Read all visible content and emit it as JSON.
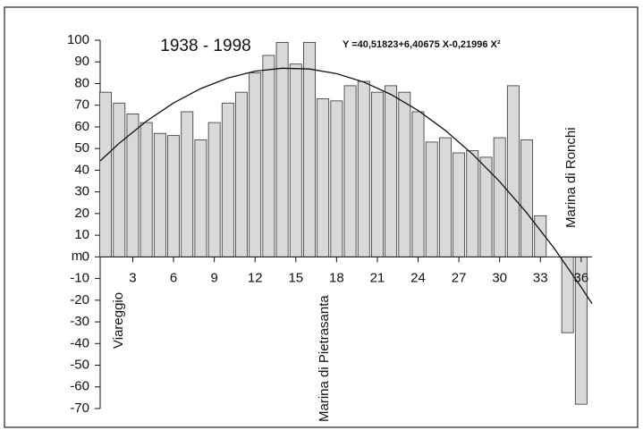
{
  "chart_data": {
    "type": "bar",
    "title": "1938 - 1998",
    "equation": "Y =40,51823+6,40675 X-0,21996 X²",
    "y_label": "m",
    "place_labels": [
      "Viareggio",
      "Marina di Pietrasanta",
      "Marina di Ronchi"
    ],
    "x": [
      1,
      2,
      3,
      4,
      5,
      6,
      7,
      8,
      9,
      10,
      11,
      12,
      13,
      14,
      15,
      16,
      17,
      18,
      19,
      20,
      21,
      22,
      23,
      24,
      25,
      26,
      27,
      28,
      29,
      30,
      31,
      32,
      33,
      34,
      35,
      36
    ],
    "values": [
      76,
      71,
      66,
      62,
      57,
      56,
      67,
      54,
      62,
      71,
      76,
      85,
      93,
      99,
      89,
      99,
      73,
      72,
      79,
      81,
      76,
      79,
      76,
      67,
      53,
      55,
      48,
      49,
      46,
      55,
      79,
      54,
      19,
      null,
      -35,
      -68
    ],
    "color": "#d9d9d9",
    "curve": {
      "x": [
        0.6,
        2,
        4,
        6,
        8,
        10,
        12,
        14,
        16,
        18,
        20,
        22,
        24,
        26,
        28,
        30,
        32,
        34,
        36,
        36.8
      ],
      "values": [
        44.28,
        52.45,
        62.63,
        71.04,
        77.69,
        82.59,
        85.73,
        87.1,
        86.72,
        84.57,
        80.68,
        75.01,
        67.58,
        58.41,
        47.46,
        34.76,
        20.3,
        4.08,
        -13.91,
        -21.57
      ],
      "color": "#111111"
    },
    "xlim": [
      0.6,
      36.8
    ],
    "xticks": [
      3,
      6,
      9,
      12,
      15,
      18,
      21,
      24,
      27,
      30,
      33,
      36
    ],
    "ylim": [
      -70,
      100
    ],
    "yticks": [
      -70,
      -60,
      -50,
      -40,
      -30,
      -20,
      -10,
      0,
      10,
      20,
      30,
      40,
      50,
      60,
      70,
      80,
      90,
      100
    ]
  }
}
